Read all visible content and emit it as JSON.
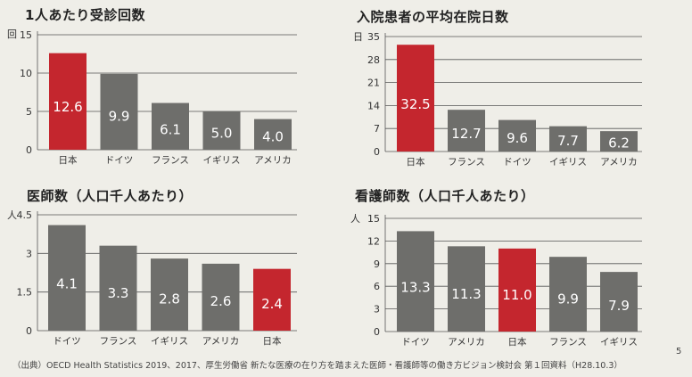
{
  "colors": {
    "highlight": "#c4262e",
    "bar": "#6e6e6b",
    "grid": "#555555"
  },
  "source": "（出典）OECD Health Statistics 2019、2017、厚生労働省 新たな医療の在り方を踏まえた医師・看護師等の働き方ビジョン検討会 第１回資料（H28.10.3）",
  "page_number": "5",
  "chart_data": [
    {
      "type": "bar",
      "title": "1人あたり受診回数",
      "unit": "回",
      "categories": [
        "日本",
        "ドイツ",
        "フランス",
        "イギリス",
        "アメリカ"
      ],
      "values": [
        12.6,
        9.9,
        6.1,
        5.0,
        4.0
      ],
      "value_labels": [
        "12.6",
        "9.9",
        "6.1",
        "5.0",
        "4.0"
      ],
      "highlight_index": 0,
      "ylim": [
        0,
        15
      ],
      "yticks": [
        0,
        5,
        10,
        15
      ],
      "ytick_labels": [
        "0",
        "5",
        "10",
        "15"
      ],
      "grid": true
    },
    {
      "type": "bar",
      "title": "入院患者の平均在院日数",
      "unit": "日",
      "categories": [
        "日本",
        "フランス",
        "ドイツ",
        "イギリス",
        "アメリカ"
      ],
      "values": [
        32.5,
        12.7,
        9.6,
        7.7,
        6.2
      ],
      "value_labels": [
        "32.5",
        "12.7",
        "9.6",
        "7.7",
        "6.2"
      ],
      "highlight_index": 0,
      "ylim": [
        0,
        35
      ],
      "yticks": [
        0,
        7,
        14,
        21,
        28,
        35
      ],
      "ytick_labels": [
        "0",
        "7",
        "14",
        "21",
        "28",
        "35"
      ],
      "grid": true
    },
    {
      "type": "bar",
      "title": "医師数（人口千人あたり）",
      "unit": "人",
      "categories": [
        "ドイツ",
        "フランス",
        "イギリス",
        "アメリカ",
        "日本"
      ],
      "values": [
        4.1,
        3.3,
        2.8,
        2.6,
        2.4
      ],
      "value_labels": [
        "4.1",
        "3.3",
        "2.8",
        "2.6",
        "2.4"
      ],
      "highlight_index": 4,
      "ylim": [
        0,
        4.5
      ],
      "yticks": [
        0,
        1.5,
        3,
        4.5
      ],
      "ytick_labels": [
        "0",
        "1.5",
        "3",
        "4.5"
      ],
      "grid": true
    },
    {
      "type": "bar",
      "title": "看護師数（人口千人あたり）",
      "unit": "人",
      "categories": [
        "ドイツ",
        "アメリカ",
        "日本",
        "フランス",
        "イギリス"
      ],
      "values": [
        13.3,
        11.3,
        11.0,
        9.9,
        7.9
      ],
      "value_labels": [
        "13.3",
        "11.3",
        "11.0",
        "9.9",
        "7.9"
      ],
      "highlight_index": 2,
      "ylim": [
        0,
        15
      ],
      "yticks": [
        0,
        3,
        6,
        9,
        12,
        15
      ],
      "ytick_labels": [
        "0",
        "3",
        "6",
        "9",
        "12",
        "15"
      ],
      "grid": true
    }
  ]
}
